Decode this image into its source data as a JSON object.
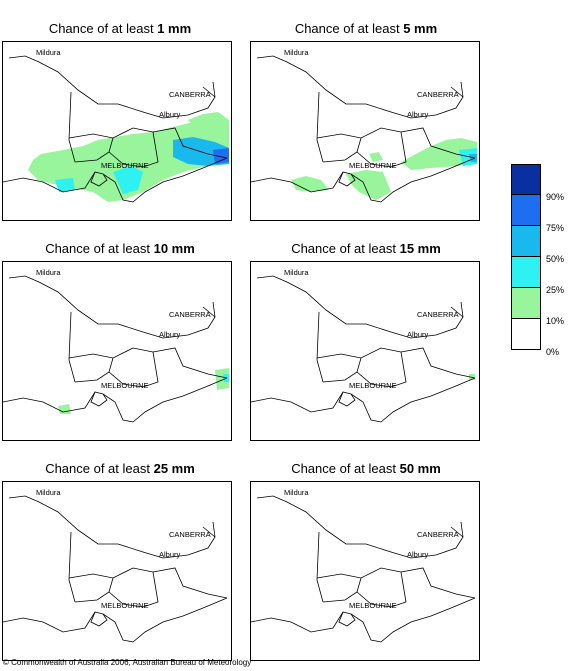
{
  "panels": [
    {
      "title_prefix": "Chance of at least ",
      "amount": "1 mm"
    },
    {
      "title_prefix": "Chance of at least ",
      "amount": "5 mm"
    },
    {
      "title_prefix": "Chance of at least ",
      "amount": "10 mm"
    },
    {
      "title_prefix": "Chance of at least ",
      "amount": "15 mm"
    },
    {
      "title_prefix": "Chance of at least ",
      "amount": "25 mm"
    },
    {
      "title_prefix": "Chance of at least ",
      "amount": "50 mm"
    }
  ],
  "places": {
    "mildura": "Mildura",
    "canberra": "CANBERRA",
    "albury": "Albury",
    "melbourne": "MELBOURNE"
  },
  "legend": {
    "labels": [
      "90%",
      "75%",
      "50%",
      "25%",
      "10%",
      "0%"
    ],
    "colors": [
      "#0a2fa0",
      "#1e6ef0",
      "#19b9ee",
      "#2ef2f2",
      "#99f59b",
      "#ffffff"
    ]
  },
  "copyright": "© Commonwealth of Australia 2006, Australian Bureau of Meteorology"
}
